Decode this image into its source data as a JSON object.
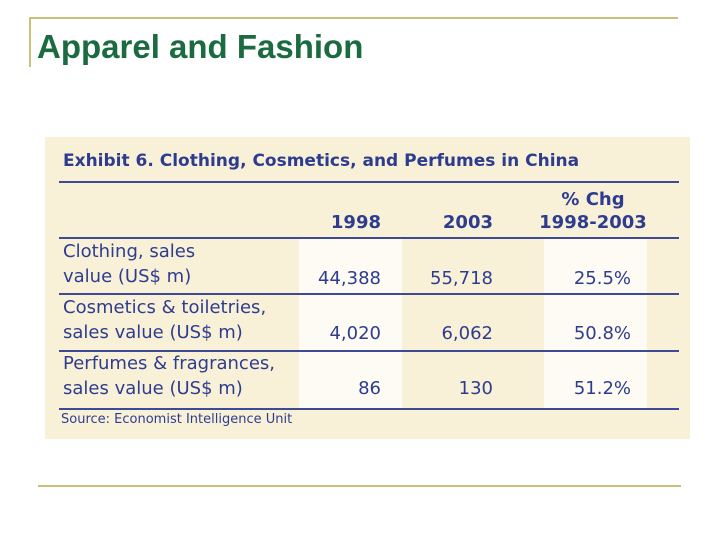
{
  "slide": {
    "title": "Apparel and Fashion"
  },
  "exhibit": {
    "title": "Exhibit 6. Clothing, Cosmetics, and Perfumes in China",
    "columns": {
      "col1": "1998",
      "col2": "2003",
      "col3_line1": "% Chg",
      "col3_line2": "1998-2003"
    },
    "rows": [
      {
        "label_line1": "Clothing, sales",
        "label_line2": "value (US$ m)",
        "v1998": "44,388",
        "v2003": "55,718",
        "chg": "25.5%"
      },
      {
        "label_line1": "Cosmetics & toiletries,",
        "label_line2": "sales value (US$ m)",
        "v1998": "4,020",
        "v2003": "6,062",
        "chg": "50.8%"
      },
      {
        "label_line1": "Perfumes & fragrances,",
        "label_line2": "sales value (US$ m)",
        "v1998": "86",
        "v2003": "130",
        "chg": "51.2%"
      }
    ],
    "source": "Source: Economist Intelligence Unit"
  },
  "colors": {
    "title_green": "#1a6b3f",
    "table_text": "#2e3c8f",
    "panel_bg": "#f8f1d8",
    "rule_gold": "#c9c07a"
  }
}
